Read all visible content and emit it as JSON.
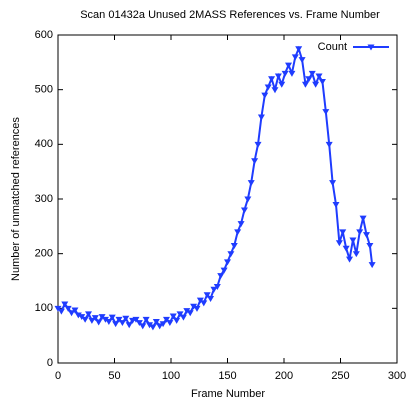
{
  "chart_data": {
    "type": "line",
    "title": "Scan 01432a Unused 2MASS References vs. Frame Number",
    "x_label": "Frame Number",
    "y_label": "Number of unmatched references",
    "xlim": [
      0,
      300
    ],
    "xticks": [
      0,
      50,
      100,
      150,
      200,
      250,
      300
    ],
    "ylim": [
      0,
      600
    ],
    "yticks": [
      0,
      100,
      200,
      300,
      400,
      500,
      600
    ],
    "legend": "top-right",
    "x": [
      0,
      3,
      6,
      9,
      12,
      15,
      18,
      21,
      24,
      27,
      30,
      33,
      36,
      39,
      42,
      45,
      48,
      51,
      54,
      57,
      60,
      63,
      66,
      69,
      72,
      75,
      78,
      81,
      84,
      87,
      90,
      93,
      96,
      99,
      102,
      105,
      108,
      111,
      114,
      117,
      120,
      123,
      126,
      129,
      132,
      135,
      138,
      141,
      144,
      147,
      150,
      153,
      156,
      159,
      162,
      165,
      168,
      171,
      174,
      177,
      180,
      183,
      186,
      189,
      192,
      195,
      198,
      201,
      204,
      207,
      210,
      213,
      216,
      219,
      222,
      225,
      228,
      231,
      234,
      237,
      240,
      243,
      246,
      249,
      252,
      255,
      258,
      261,
      264,
      267,
      270,
      273,
      276,
      278
    ],
    "series": [
      {
        "name": "Count",
        "color": "#1f3cff",
        "values": [
          100,
          95,
          108,
          100,
          92,
          97,
          88,
          85,
          80,
          90,
          78,
          83,
          75,
          85,
          80,
          76,
          84,
          72,
          80,
          74,
          82,
          70,
          78,
          80,
          74,
          68,
          80,
          70,
          66,
          76,
          68,
          72,
          80,
          74,
          86,
          78,
          90,
          84,
          96,
          92,
          104,
          100,
          115,
          110,
          125,
          118,
          135,
          140,
          160,
          170,
          185,
          200,
          215,
          240,
          255,
          280,
          300,
          330,
          370,
          400,
          450,
          490,
          505,
          520,
          500,
          525,
          510,
          530,
          545,
          530,
          560,
          575,
          555,
          510,
          520,
          530,
          510,
          525,
          515,
          460,
          400,
          330,
          290,
          220,
          240,
          210,
          190,
          225,
          200,
          240,
          265,
          235,
          215,
          180
        ]
      }
    ]
  }
}
